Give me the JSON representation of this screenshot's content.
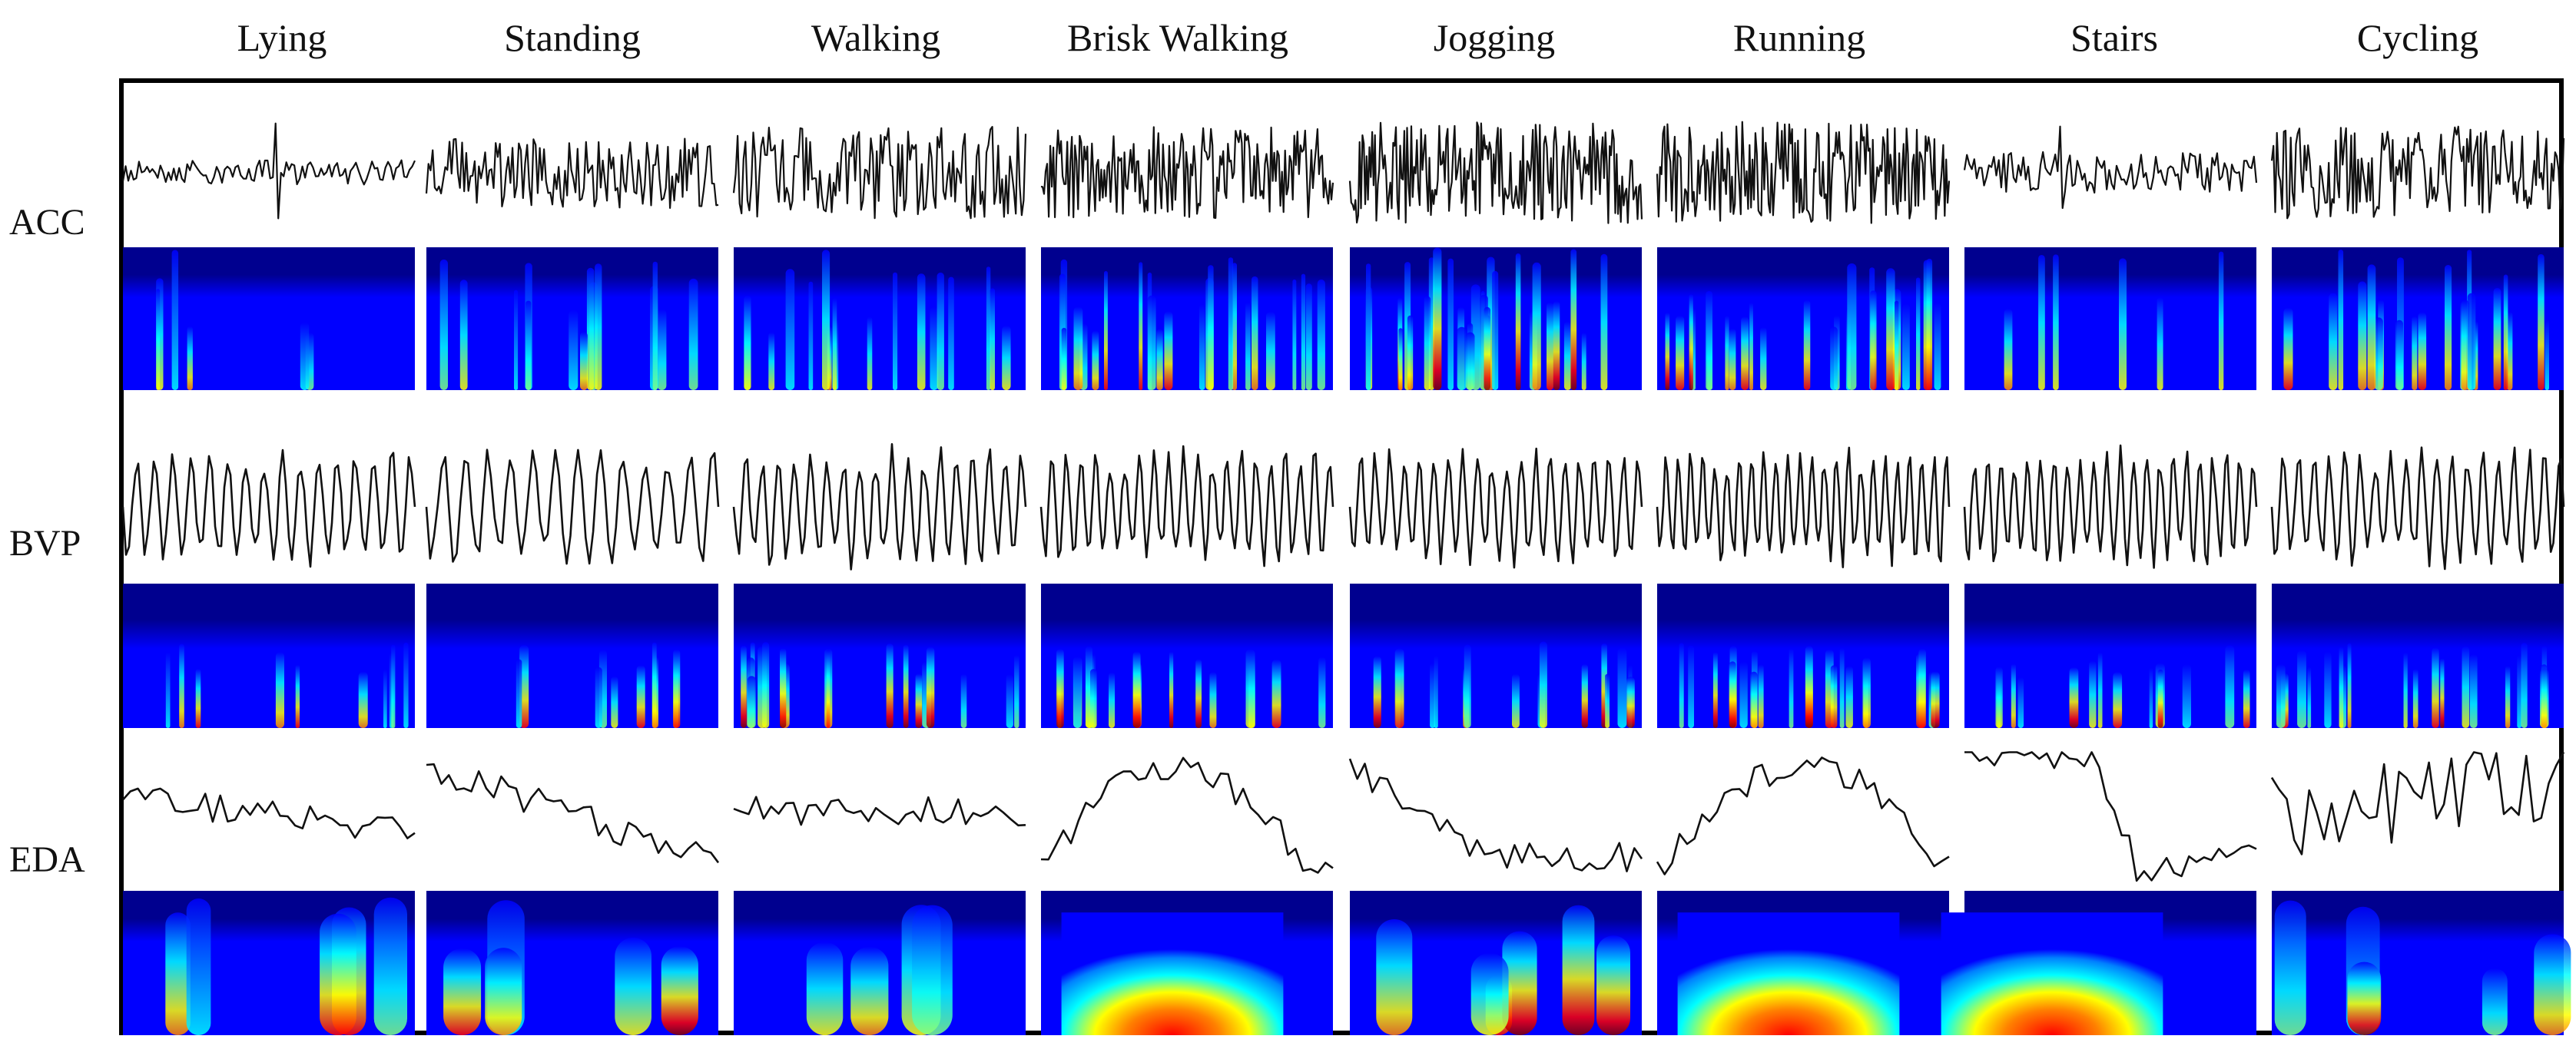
{
  "figure": {
    "activities": [
      "Lying",
      "Standing",
      "Walking",
      "Brisk Walking",
      "Jogging",
      "Running",
      "Stairs",
      "Cycling"
    ],
    "signals": [
      "ACC",
      "BVP",
      "EDA"
    ],
    "colormap": [
      "#00008f",
      "#0000ff",
      "#0080ff",
      "#00ffff",
      "#80ff80",
      "#ffff00",
      "#ff8000",
      "#ff0000",
      "#800000"
    ],
    "line_color": "#111111",
    "panel_kinds": [
      "time-series waveform",
      "wavelet scalogram"
    ]
  }
}
